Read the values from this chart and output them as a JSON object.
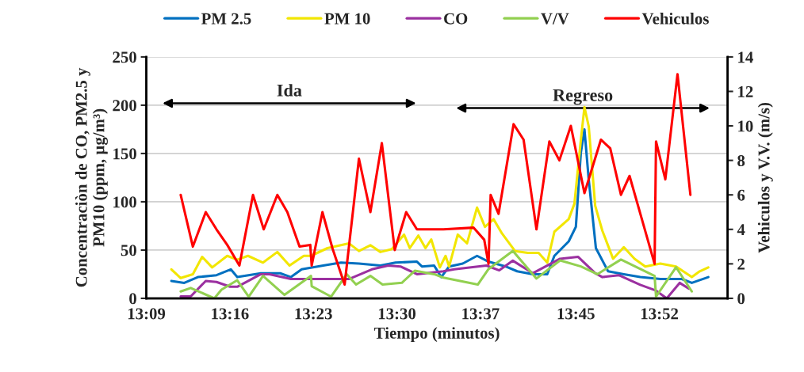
{
  "chart_data": {
    "type": "line",
    "xlabel": "Tiempo (minutos)",
    "ylabel": "Concentraciòn de CO, PM2.5 y\nPM10 (ppm, µg/m³)",
    "y2label": "Vehiculos y V.V. (m/s)",
    "xlim": [
      13.15,
      13.962
    ],
    "xticks": [
      {
        "value": 13.15,
        "label": "13:09"
      },
      {
        "value": 13.2667,
        "label": "13:16"
      },
      {
        "value": 13.3833,
        "label": "13:23"
      },
      {
        "value": 13.5,
        "label": "13:30"
      },
      {
        "value": 13.6167,
        "label": "13:37"
      },
      {
        "value": 13.75,
        "label": "13:45"
      },
      {
        "value": 13.8667,
        "label": "13:52"
      }
    ],
    "ylim": [
      0,
      250
    ],
    "yticks": [
      0,
      50,
      100,
      150,
      200,
      250
    ],
    "y2lim": [
      0,
      14
    ],
    "y2ticks": [
      0,
      2,
      4,
      6,
      8,
      10,
      12,
      14
    ],
    "grid": "y",
    "legend": "top",
    "marker": "none",
    "line_style": "solid",
    "annotations": [
      "Ida",
      "Regreso"
    ],
    "series": [
      {
        "name": "PM 2.5",
        "color": "#0070c0",
        "x": [
          13.185,
          13.203,
          13.222,
          13.248,
          13.268,
          13.277,
          13.31,
          13.337,
          13.352,
          13.367,
          13.397,
          13.422,
          13.447,
          13.477,
          13.498,
          13.528,
          13.535,
          13.552,
          13.562,
          13.573,
          13.592,
          13.612,
          13.628,
          13.652,
          13.668,
          13.69,
          13.71,
          13.72,
          13.74,
          13.75,
          13.757,
          13.762,
          13.768,
          13.778,
          13.795,
          13.817,
          13.84,
          13.868,
          13.898,
          13.912,
          13.935
        ],
        "values": [
          18,
          16,
          22,
          24,
          30,
          22,
          26,
          26,
          22,
          30,
          34,
          37,
          36,
          34,
          37,
          38,
          33,
          34,
          22,
          33,
          36,
          44,
          38,
          33,
          28,
          25,
          25,
          44,
          59,
          74,
          151,
          175,
          123,
          52,
          28,
          25,
          22,
          20,
          20,
          16,
          22
        ]
      },
      {
        "name": "PM 10",
        "color": "#f2e600",
        "x": [
          13.185,
          13.198,
          13.215,
          13.228,
          13.242,
          13.263,
          13.277,
          13.292,
          13.313,
          13.333,
          13.35,
          13.37,
          13.38,
          13.403,
          13.433,
          13.447,
          13.463,
          13.477,
          13.493,
          13.51,
          13.518,
          13.53,
          13.54,
          13.548,
          13.56,
          13.568,
          13.573,
          13.585,
          13.598,
          13.612,
          13.623,
          13.635,
          13.647,
          13.665,
          13.683,
          13.698,
          13.71,
          13.72,
          13.74,
          13.748,
          13.757,
          13.762,
          13.768,
          13.777,
          13.787,
          13.802,
          13.817,
          13.832,
          13.847,
          13.868,
          13.89,
          13.912,
          13.923,
          13.935
        ],
        "values": [
          30,
          21,
          25,
          43,
          32,
          44,
          40,
          44,
          37,
          48,
          34,
          44,
          44,
          52,
          57,
          49,
          55,
          48,
          51,
          66,
          52,
          65,
          52,
          61,
          32,
          44,
          33,
          66,
          57,
          94,
          74,
          82,
          67,
          49,
          47,
          47,
          37,
          69,
          82,
          98,
          164,
          198,
          178,
          96,
          70,
          41,
          53,
          41,
          33,
          36,
          33,
          22,
          28,
          32
        ]
      },
      {
        "name": "CO",
        "color": "#9b30a0",
        "x": [
          13.198,
          13.212,
          13.233,
          13.248,
          13.267,
          13.277,
          13.31,
          13.322,
          13.352,
          13.38,
          13.418,
          13.433,
          13.465,
          13.488,
          13.505,
          13.528,
          13.565,
          13.58,
          13.625,
          13.643,
          13.662,
          13.69,
          13.728,
          13.753,
          13.777,
          13.787,
          13.81,
          13.84,
          13.862,
          13.877,
          13.895,
          13.908
        ],
        "values": [
          2,
          2,
          18,
          17,
          12,
          12,
          25,
          25,
          20,
          20,
          20,
          20,
          30,
          34,
          33,
          25,
          28,
          30,
          34,
          29,
          39,
          26,
          41,
          43,
          26,
          22,
          24,
          14,
          8,
          0,
          16,
          10
        ]
      },
      {
        "name": "V/V",
        "color": "#92d050",
        "axis": "y2",
        "x": [
          13.198,
          13.212,
          13.245,
          13.255,
          13.277,
          13.293,
          13.313,
          13.343,
          13.38,
          13.381,
          13.408,
          13.43,
          13.443,
          13.463,
          13.48,
          13.507,
          13.525,
          13.552,
          13.565,
          13.613,
          13.628,
          13.662,
          13.695,
          13.728,
          13.757,
          13.78,
          13.813,
          13.86,
          13.862,
          13.89,
          13.912
        ],
        "values": [
          0.4,
          0.6,
          0,
          0.5,
          1.05,
          0.1,
          1.3,
          0.2,
          1.3,
          0.7,
          0.1,
          1.4,
          0.8,
          1.3,
          0.8,
          0.9,
          1.6,
          1.4,
          1.2,
          0.8,
          1.7,
          2.75,
          1.15,
          2.2,
          1.85,
          1.4,
          2.25,
          1.3,
          0.1,
          1.8,
          0.4
        ]
      },
      {
        "name": "Vehiculos",
        "color": "#ff0000",
        "axis": "y2",
        "x": [
          13.198,
          13.215,
          13.233,
          13.248,
          13.263,
          13.28,
          13.299,
          13.314,
          13.333,
          13.347,
          13.364,
          13.379,
          13.381,
          13.396,
          13.41,
          13.427,
          13.447,
          13.463,
          13.479,
          13.497,
          13.513,
          13.528,
          13.565,
          13.607,
          13.622,
          13.628,
          13.631,
          13.642,
          13.663,
          13.677,
          13.695,
          13.713,
          13.727,
          13.743,
          13.762,
          13.785,
          13.798,
          13.813,
          13.825,
          13.86,
          13.862,
          13.875,
          13.892,
          13.91
        ],
        "values": [
          6,
          3,
          5,
          4,
          3.1,
          1.9,
          6,
          4,
          6,
          5,
          3,
          3.1,
          1.9,
          5,
          2.9,
          0.8,
          8.1,
          5,
          9,
          2.8,
          5,
          4,
          4,
          4.1,
          3.4,
          2,
          6,
          4.9,
          10.1,
          9.2,
          4,
          9.1,
          8,
          10,
          6.1,
          9.2,
          8.7,
          6,
          7.1,
          2,
          9.1,
          6.9,
          13,
          6
        ]
      }
    ]
  }
}
